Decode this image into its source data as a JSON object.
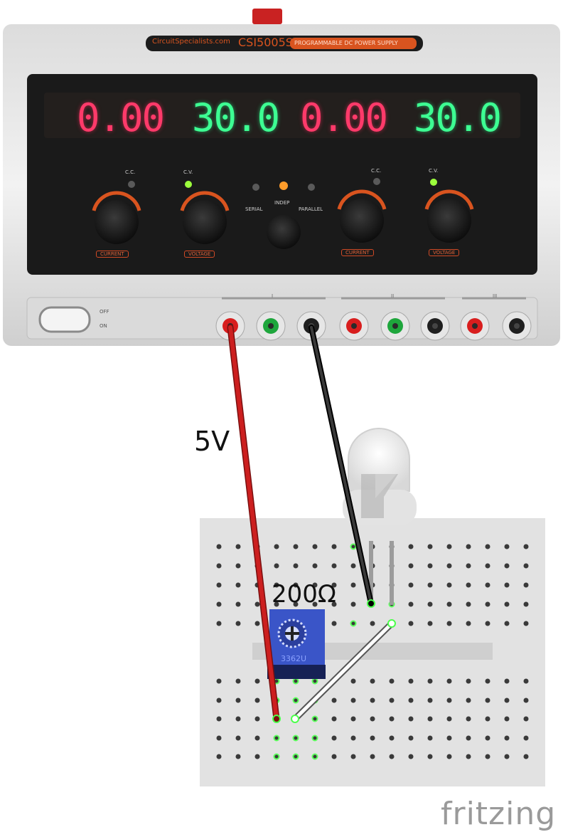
{
  "supply": {
    "brand_text": "CircuitSpecialists.com",
    "model": "CSI5005S",
    "subtitle": "PROGRAMMABLE DC POWER SUPPLY",
    "displays": [
      {
        "value": "0.00",
        "color": "#ff3a6a"
      },
      {
        "value": "30.0",
        "color": "#3dff93"
      },
      {
        "value": "0.00",
        "color": "#ff3a6a"
      },
      {
        "value": "30.0",
        "color": "#3dff93"
      }
    ],
    "led_labels": [
      "C.C.",
      "C.V.",
      "C.C.",
      "C.V."
    ],
    "knob_labels": [
      "CURRENT",
      "VOLTAGE",
      "CURRENT",
      "VOLTAGE"
    ],
    "mode_labels": [
      "SERIAL",
      "INDEP",
      "PARALLEL"
    ],
    "power_labels": [
      "OFF",
      "ON"
    ],
    "channel_labels": [
      "I",
      "II",
      "III"
    ]
  },
  "wiring": {
    "voltage_label": "5V",
    "resistor_label": "200Ω",
    "potentiometer_code": "3362U"
  },
  "footer": {
    "brand": "fritzing"
  },
  "colors": {
    "red_wire": "#cc1f1f",
    "black_wire": "#222222",
    "white_wire": "#ffffff",
    "pot_blue": "#3a55c8",
    "breadboard": "#e2e2e2"
  }
}
